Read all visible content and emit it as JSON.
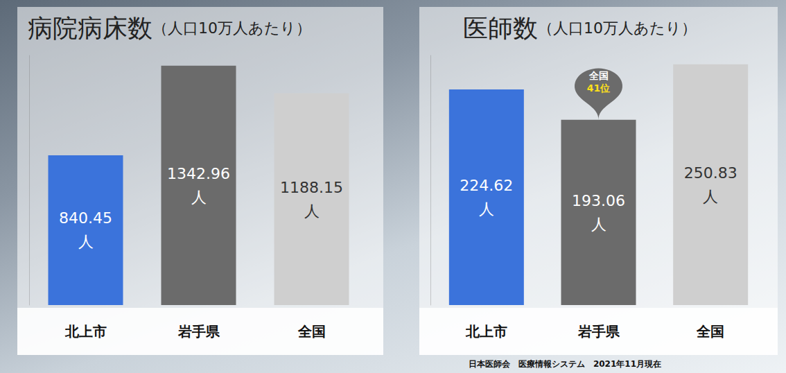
{
  "chart_data": [
    {
      "type": "bar",
      "title": "病院病床数（人口10万人あたり）",
      "categories": [
        "北上市",
        "岩手県",
        "全国"
      ],
      "values": [
        840.45,
        1342.96,
        1188.15
      ],
      "value_labels": [
        "840.45\n人",
        "1342.96\n人",
        "1188.15\n人"
      ],
      "colors": [
        "#3b73db",
        "#6b6b6b",
        "#cfcfcf"
      ],
      "ylim": [
        0,
        1400
      ],
      "grid": false,
      "tick_labels": false,
      "data_labels": true
    },
    {
      "type": "bar",
      "title": "医師数（人口10万人あたり）",
      "categories": [
        "北上市",
        "岩手県",
        "全国"
      ],
      "values": [
        224.62,
        193.06,
        250.83
      ],
      "value_labels": [
        "224.62\n人",
        "193.06\n人",
        "250.83\n人"
      ],
      "colors": [
        "#3b73db",
        "#6b6b6b",
        "#cfcfcf"
      ],
      "ylim": [
        0,
        260
      ],
      "grid": false,
      "tick_labels": false,
      "data_labels": true,
      "annotations": [
        {
          "category": "岩手県",
          "text": "全国\n41位"
        }
      ]
    }
  ],
  "source": "日本医師会　医療情報システム　2021年11月現在"
}
